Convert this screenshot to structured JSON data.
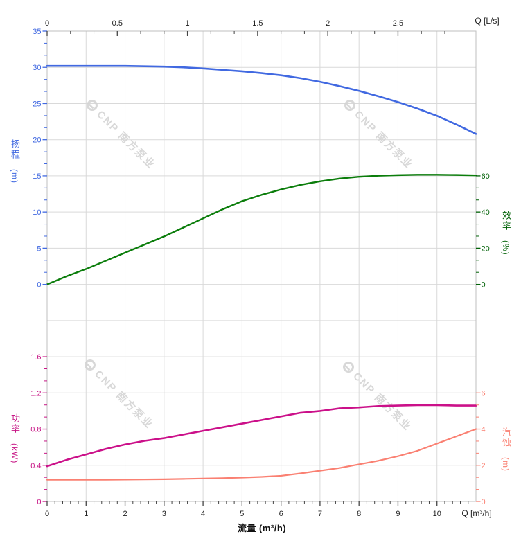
{
  "watermark": {
    "brand": "CNP 南方泵业"
  },
  "colors": {
    "head": "#4169e1",
    "efficiency_curve": "#0b7d0b",
    "efficiency_text": "#006106",
    "power_curve": "#cb1089",
    "power_text": "#c71585",
    "npsh": "#fa8072",
    "grid": "#d9d9d9",
    "border": "#bfbfbf",
    "x_tick": "#444444",
    "x_text": "#1f1f1f",
    "watermark": "#d4d4d4"
  },
  "labels": {
    "head_title": "扬程",
    "head_unit": "(m)",
    "efficiency_title": "效率",
    "efficiency_unit": "(%)",
    "power_title": "功率",
    "power_unit": "(kW)",
    "npsh_title": "汽蚀",
    "npsh_unit": "(m)",
    "flow_axis_title": "流量 (m³/h)",
    "top_corner": "Q [L/s]",
    "bottom_corner": "Q [m³/h]"
  },
  "chart_data": {
    "type": "line",
    "grid": "on",
    "x_m3h": [
      0,
      0.5,
      1,
      1.5,
      2,
      2.5,
      3,
      3.5,
      4,
      4.5,
      5,
      5.5,
      6,
      6.5,
      7,
      7.5,
      8,
      8.5,
      9,
      9.5,
      10,
      10.5,
      11
    ],
    "x_axis_bottom": {
      "title": "流量 (m³/h)",
      "corner_label": "Q [m³/h]",
      "unit": "m³/h",
      "range": [
        0,
        11
      ],
      "tick_labels": [
        "0",
        "1",
        "2",
        "3",
        "4",
        "5",
        "6",
        "7",
        "8",
        "9",
        "10"
      ],
      "minor_step": 0.2
    },
    "x_axis_top": {
      "corner_label": "Q [L/s]",
      "unit": "L/s",
      "range_lps": [
        0,
        3.06
      ],
      "tick_labels": [
        "0",
        "0.5",
        "1",
        "1.5",
        "2",
        "2.5"
      ],
      "minor_step_lps": 0.1667,
      "lps_to_m3h": 3.6
    },
    "panels": [
      {
        "name": "head-efficiency",
        "left_axis": {
          "title": "扬程",
          "unit": "(m)",
          "range": [
            0,
            35
          ],
          "tick_labels": [
            "0",
            "5",
            "10",
            "15",
            "20",
            "25",
            "30",
            "35"
          ],
          "minors_between_majors": 2
        },
        "right_axis": {
          "title": "效率",
          "unit": "(%)",
          "range": [
            0,
            60
          ],
          "tick_labels": [
            "0",
            "20",
            "40",
            "60"
          ],
          "minors_between_majors": 2
        },
        "series": [
          {
            "name": "head",
            "axis": "left",
            "unit": "m",
            "color_key": "head",
            "values": [
              30.2,
              30.2,
              30.2,
              30.2,
              30.2,
              30.15,
              30.1,
              30.0,
              29.85,
              29.65,
              29.45,
              29.2,
              28.9,
              28.5,
              28.0,
              27.4,
              26.75,
              26.0,
              25.2,
              24.3,
              23.3,
              22.1,
              20.8
            ]
          },
          {
            "name": "efficiency",
            "axis": "right",
            "unit": "%",
            "color_key": "efficiency_curve",
            "values": [
              0,
              4.5,
              8.5,
              13,
              17.5,
              22,
              26.5,
              31.5,
              36.5,
              41.5,
              46,
              49.5,
              52.5,
              55,
              57,
              58.5,
              59.5,
              60.1,
              60.4,
              60.6,
              60.6,
              60.5,
              60.3
            ]
          }
        ]
      },
      {
        "name": "power-npsh",
        "left_axis": {
          "title": "功率",
          "unit": "(kW)",
          "range": [
            0,
            1.6
          ],
          "tick_labels": [
            "0",
            "0.4",
            "0.8",
            "1.2",
            "1.6"
          ],
          "minors_between_majors": 2
        },
        "right_axis": {
          "title": "汽蚀",
          "unit": "(m)",
          "range": [
            0,
            6
          ],
          "tick_labels": [
            "0",
            "2",
            "4",
            "6"
          ],
          "minors_between_majors": 2
        },
        "series": [
          {
            "name": "power",
            "axis": "left",
            "unit": "kW",
            "color_key": "power_curve",
            "values": [
              0.39,
              0.46,
              0.52,
              0.58,
              0.63,
              0.67,
              0.7,
              0.74,
              0.78,
              0.82,
              0.86,
              0.9,
              0.94,
              0.98,
              1.0,
              1.03,
              1.04,
              1.055,
              1.06,
              1.065,
              1.065,
              1.06,
              1.06
            ]
          },
          {
            "name": "npsh",
            "axis": "right",
            "unit": "m",
            "color_key": "npsh",
            "values": [
              1.2,
              1.2,
              1.2,
              1.2,
              1.21,
              1.22,
              1.23,
              1.25,
              1.27,
              1.29,
              1.32,
              1.36,
              1.42,
              1.55,
              1.7,
              1.85,
              2.05,
              2.25,
              2.5,
              2.8,
              3.2,
              3.6,
              4.0
            ]
          }
        ]
      }
    ]
  }
}
